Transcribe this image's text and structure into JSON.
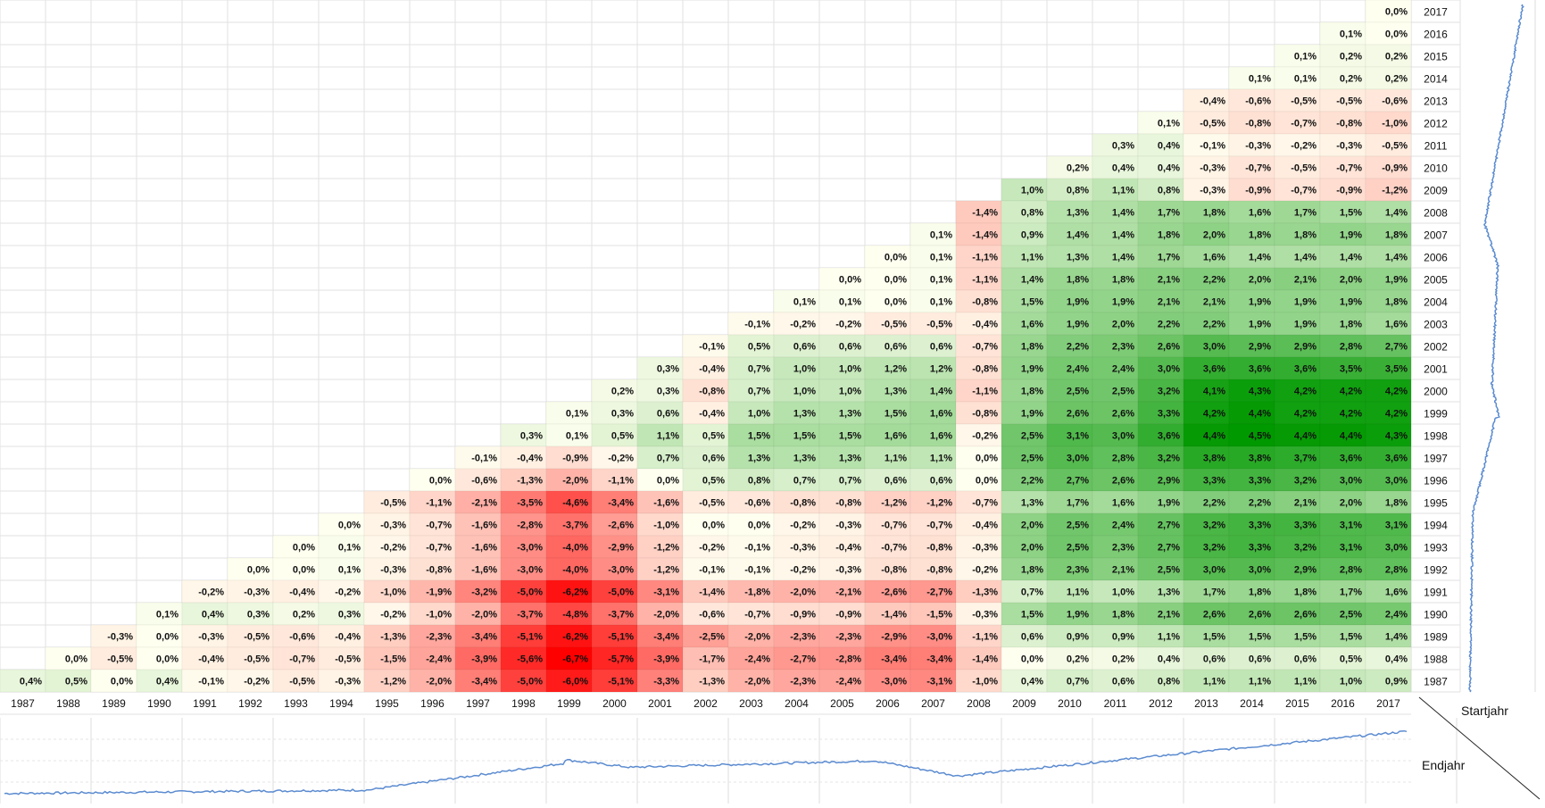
{
  "chart_data": {
    "type": "heatmap",
    "title": "",
    "x_axis_label": "Endjahr",
    "y_axis_label": "Startjahr",
    "x_years": [
      "1987",
      "1988",
      "1989",
      "1990",
      "1991",
      "1992",
      "1993",
      "1994",
      "1995",
      "1996",
      "1997",
      "1998",
      "1999",
      "2000",
      "2001",
      "2002",
      "2003",
      "2004",
      "2005",
      "2006",
      "2007",
      "2008",
      "2009",
      "2010",
      "2011",
      "2012",
      "2013",
      "2014",
      "2015",
      "2016",
      "2017"
    ],
    "y_years": [
      "2017",
      "2016",
      "2015",
      "2014",
      "2013",
      "2012",
      "2011",
      "2010",
      "2009",
      "2008",
      "2007",
      "2006",
      "2005",
      "2004",
      "2003",
      "2002",
      "2001",
      "2000",
      "1999",
      "1998",
      "1997",
      "1996",
      "1995",
      "1994",
      "1993",
      "1992",
      "1991",
      "1990",
      "1989",
      "1988",
      "1987"
    ],
    "rows": [
      {
        "start": "2017",
        "values": [
          0.0
        ]
      },
      {
        "start": "2016",
        "values": [
          0.1,
          0.0
        ]
      },
      {
        "start": "2015",
        "values": [
          0.1,
          0.2,
          0.2
        ]
      },
      {
        "start": "2014",
        "values": [
          0.1,
          0.1,
          0.2,
          0.2
        ]
      },
      {
        "start": "2013",
        "values": [
          -0.4,
          -0.6,
          -0.5,
          -0.5,
          -0.6
        ]
      },
      {
        "start": "2012",
        "values": [
          0.1,
          -0.5,
          -0.8,
          -0.7,
          -0.8,
          -1.0
        ]
      },
      {
        "start": "2011",
        "values": [
          0.3,
          0.4,
          -0.1,
          -0.3,
          -0.2,
          -0.3,
          -0.5
        ]
      },
      {
        "start": "2010",
        "values": [
          0.2,
          0.4,
          0.4,
          -0.3,
          -0.7,
          -0.5,
          -0.7,
          -0.9
        ]
      },
      {
        "start": "2009",
        "values": [
          1.0,
          0.8,
          1.1,
          0.8,
          -0.3,
          -0.9,
          -0.7,
          -0.9,
          -1.2
        ]
      },
      {
        "start": "2008",
        "values": [
          -1.4,
          0.8,
          1.3,
          1.4,
          1.7,
          1.8,
          1.6,
          1.7,
          1.5,
          1.4
        ]
      },
      {
        "start": "2007",
        "values": [
          0.1,
          -1.4,
          0.9,
          1.4,
          1.4,
          1.8,
          2.0,
          1.8,
          1.8,
          1.9,
          1.8
        ]
      },
      {
        "start": "2006",
        "values": [
          0.0,
          0.1,
          -1.1,
          1.1,
          1.3,
          1.4,
          1.7,
          1.6,
          1.4,
          1.4,
          1.4,
          1.4
        ]
      },
      {
        "start": "2005",
        "values": [
          0.0,
          0.0,
          0.1,
          -1.1,
          1.4,
          1.8,
          1.8,
          2.1,
          2.2,
          2.0,
          2.1,
          2.0,
          1.9
        ]
      },
      {
        "start": "2004",
        "values": [
          0.1,
          0.1,
          0.0,
          0.1,
          -0.8,
          1.5,
          1.9,
          1.9,
          2.1,
          2.1,
          1.9,
          1.9,
          1.9,
          1.8
        ]
      },
      {
        "start": "2003",
        "values": [
          -0.1,
          -0.2,
          -0.2,
          -0.5,
          -0.5,
          -0.4,
          1.6,
          1.9,
          2.0,
          2.2,
          2.2,
          1.9,
          1.9,
          1.8,
          1.6
        ]
      },
      {
        "start": "2002",
        "values": [
          -0.1,
          0.5,
          0.6,
          0.6,
          0.6,
          0.6,
          -0.7,
          1.8,
          2.2,
          2.3,
          2.6,
          3.0,
          2.9,
          2.9,
          2.8,
          2.7
        ]
      },
      {
        "start": "2001",
        "values": [
          0.3,
          -0.4,
          0.7,
          1.0,
          1.0,
          1.2,
          1.2,
          -0.8,
          1.9,
          2.4,
          2.4,
          3.0,
          3.6,
          3.6,
          3.6,
          3.5,
          3.5
        ]
      },
      {
        "start": "2000",
        "values": [
          0.2,
          0.3,
          -0.8,
          0.7,
          1.0,
          1.0,
          1.3,
          1.4,
          -1.1,
          1.8,
          2.5,
          2.5,
          3.2,
          4.1,
          4.3,
          4.2,
          4.2,
          4.2
        ]
      },
      {
        "start": "1999",
        "values": [
          0.1,
          0.3,
          0.6,
          -0.4,
          1.0,
          1.3,
          1.3,
          1.5,
          1.6,
          -0.8,
          1.9,
          2.6,
          2.6,
          3.3,
          4.2,
          4.4,
          4.2,
          4.2,
          4.2
        ]
      },
      {
        "start": "1998",
        "values": [
          0.3,
          0.1,
          0.5,
          1.1,
          0.5,
          1.5,
          1.5,
          1.5,
          1.6,
          1.6,
          -0.2,
          2.5,
          3.1,
          3.0,
          3.6,
          4.4,
          4.5,
          4.4,
          4.4,
          4.3
        ]
      },
      {
        "start": "1997",
        "values": [
          -0.1,
          -0.4,
          -0.9,
          -0.2,
          0.7,
          0.6,
          1.3,
          1.3,
          1.3,
          1.1,
          1.1,
          0.0,
          2.5,
          3.0,
          2.8,
          3.2,
          3.8,
          3.8,
          3.7,
          3.6,
          3.6
        ]
      },
      {
        "start": "1996",
        "values": [
          0.0,
          -0.6,
          -1.3,
          -2.0,
          -1.1,
          0.0,
          0.5,
          0.8,
          0.7,
          0.7,
          0.6,
          0.6,
          0.0,
          2.2,
          2.7,
          2.6,
          2.9,
          3.3,
          3.3,
          3.2,
          3.0,
          3.0
        ]
      },
      {
        "start": "1995",
        "values": [
          -0.5,
          -1.1,
          -2.1,
          -3.5,
          -4.6,
          -3.4,
          -1.6,
          -0.5,
          -0.6,
          -0.8,
          -0.8,
          -1.2,
          -1.2,
          -0.7,
          1.3,
          1.7,
          1.6,
          1.9,
          2.2,
          2.2,
          2.1,
          2.0,
          1.8
        ]
      },
      {
        "start": "1994",
        "values": [
          0.0,
          -0.3,
          -0.7,
          -1.6,
          -2.8,
          -3.7,
          -2.6,
          -1.0,
          0.0,
          0.0,
          -0.2,
          -0.3,
          -0.7,
          -0.7,
          -0.4,
          2.0,
          2.5,
          2.4,
          2.7,
          3.2,
          3.3,
          3.3,
          3.1,
          3.1
        ]
      },
      {
        "start": "1993",
        "values": [
          0.0,
          0.1,
          -0.2,
          -0.7,
          -1.6,
          -3.0,
          -4.0,
          -2.9,
          -1.2,
          -0.2,
          -0.1,
          -0.3,
          -0.4,
          -0.7,
          -0.8,
          -0.3,
          2.0,
          2.5,
          2.3,
          2.7,
          3.2,
          3.3,
          3.2,
          3.1,
          3.0
        ]
      },
      {
        "start": "1992",
        "values": [
          0.0,
          0.0,
          0.1,
          -0.3,
          -0.8,
          -1.6,
          -3.0,
          -4.0,
          -3.0,
          -1.2,
          -0.1,
          -0.1,
          -0.2,
          -0.3,
          -0.8,
          -0.8,
          -0.2,
          1.8,
          2.3,
          2.1,
          2.5,
          3.0,
          3.0,
          2.9,
          2.8,
          2.8
        ]
      },
      {
        "start": "1991",
        "values": [
          -0.2,
          -0.3,
          -0.4,
          -0.2,
          -1.0,
          -1.9,
          -3.2,
          -5.0,
          -6.2,
          -5.0,
          -3.1,
          -1.4,
          -1.8,
          -2.0,
          -2.1,
          -2.6,
          -2.7,
          -1.3,
          0.7,
          1.1,
          1.0,
          1.3,
          1.7,
          1.8,
          1.8,
          1.7,
          1.6
        ]
      },
      {
        "start": "1990",
        "values": [
          0.1,
          0.4,
          0.3,
          0.2,
          0.3,
          -0.2,
          -1.0,
          -2.0,
          -3.7,
          -4.8,
          -3.7,
          -2.0,
          -0.6,
          -0.7,
          -0.9,
          -0.9,
          -1.4,
          -1.5,
          -0.3,
          1.5,
          1.9,
          1.8,
          2.1,
          2.6,
          2.6,
          2.6,
          2.5,
          2.4
        ]
      },
      {
        "start": "1989",
        "values": [
          -0.3,
          0.0,
          -0.3,
          -0.5,
          -0.6,
          -0.4,
          -1.3,
          -2.3,
          -3.4,
          -5.1,
          -6.2,
          -5.1,
          -3.4,
          -2.5,
          -2.0,
          -2.3,
          -2.3,
          -2.9,
          -3.0,
          -1.1,
          0.6,
          0.9,
          0.9,
          1.1,
          1.5,
          1.5,
          1.5,
          1.5,
          1.4
        ]
      },
      {
        "start": "1988",
        "values": [
          0.0,
          -0.5,
          0.0,
          -0.4,
          -0.5,
          -0.7,
          -0.5,
          -1.5,
          -2.4,
          -3.9,
          -5.6,
          -6.7,
          -5.7,
          -3.9,
          -1.7,
          -2.4,
          -2.7,
          -2.8,
          -3.4,
          -3.4,
          -1.4,
          0.0,
          0.2,
          0.2,
          0.4,
          0.6,
          0.6,
          0.6,
          0.5,
          0.4
        ]
      },
      {
        "start": "1987",
        "values": [
          0.4,
          0.5,
          0.0,
          0.4,
          -0.1,
          -0.2,
          -0.5,
          -0.3,
          -1.2,
          -2.0,
          -3.4,
          -5.0,
          -6.0,
          -5.1,
          -3.3,
          -1.3,
          -2.0,
          -2.3,
          -2.4,
          -3.0,
          -3.1,
          -1.0,
          0.4,
          0.7,
          0.6,
          0.8,
          1.1,
          1.1,
          1.1,
          1.0,
          0.9
        ]
      }
    ],
    "color_scale": {
      "negative": "#ff0000",
      "zero": "#fffff0",
      "positive": "#009900",
      "min": -6.7,
      "max": 4.5
    },
    "decimal_separator": ",",
    "value_suffix": "%",
    "price_series_color": "#5b8bd0"
  }
}
